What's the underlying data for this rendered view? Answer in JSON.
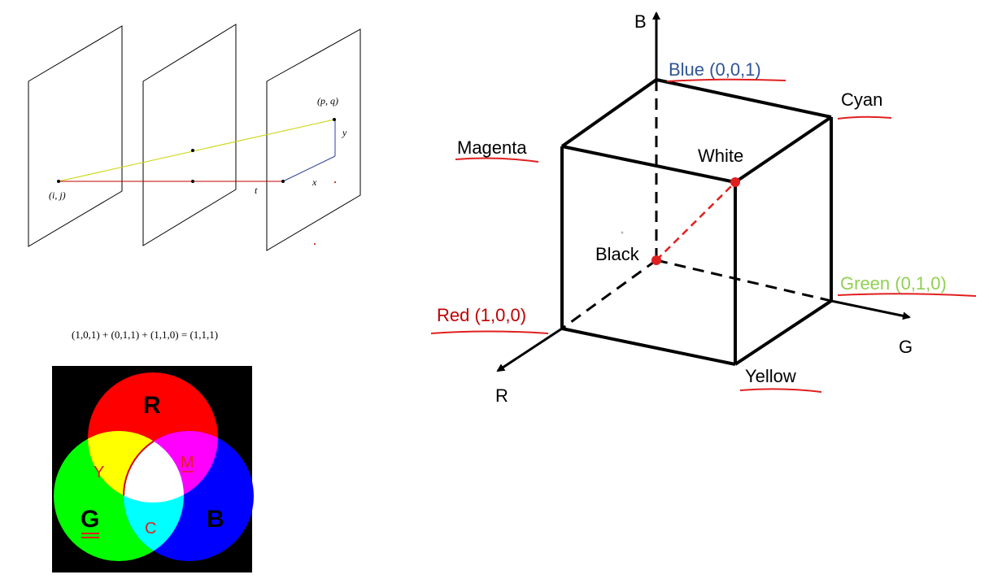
{
  "planes_figure": {
    "point_start": "(i, j)",
    "point_end": "(p, q)",
    "label_t": "t",
    "label_x": "x",
    "label_y": "y"
  },
  "equation": {
    "text": "(1,0,1) + (0,1,1) + (1,1,0)  = (1,1,1)"
  },
  "venn": {
    "label_r": "R",
    "label_g": "G",
    "label_b": "B",
    "label_y": "Y",
    "label_m": "M",
    "label_c": "C",
    "colors": {
      "red": "#ff0000",
      "green": "#00ff00",
      "blue": "#0000ff",
      "yellow": "#ffff00",
      "magenta": "#ff00ff",
      "cyan": "#00ffff",
      "white": "#ffffff",
      "background": "#000000"
    }
  },
  "cube": {
    "axis_b": "B",
    "axis_g": "G",
    "axis_r": "R",
    "blue": "Blue (0,0,1)",
    "cyan": "Cyan",
    "magenta": "Magenta",
    "white": "White",
    "black": "Black",
    "green": "Green (0,1,0)",
    "red": "Red (1,0,0)",
    "yellow": "Yellow",
    "colors": {
      "blue_label": "#2f5597",
      "green_label": "#92d050",
      "red_label": "#c00000",
      "underline": "#e02020"
    }
  }
}
